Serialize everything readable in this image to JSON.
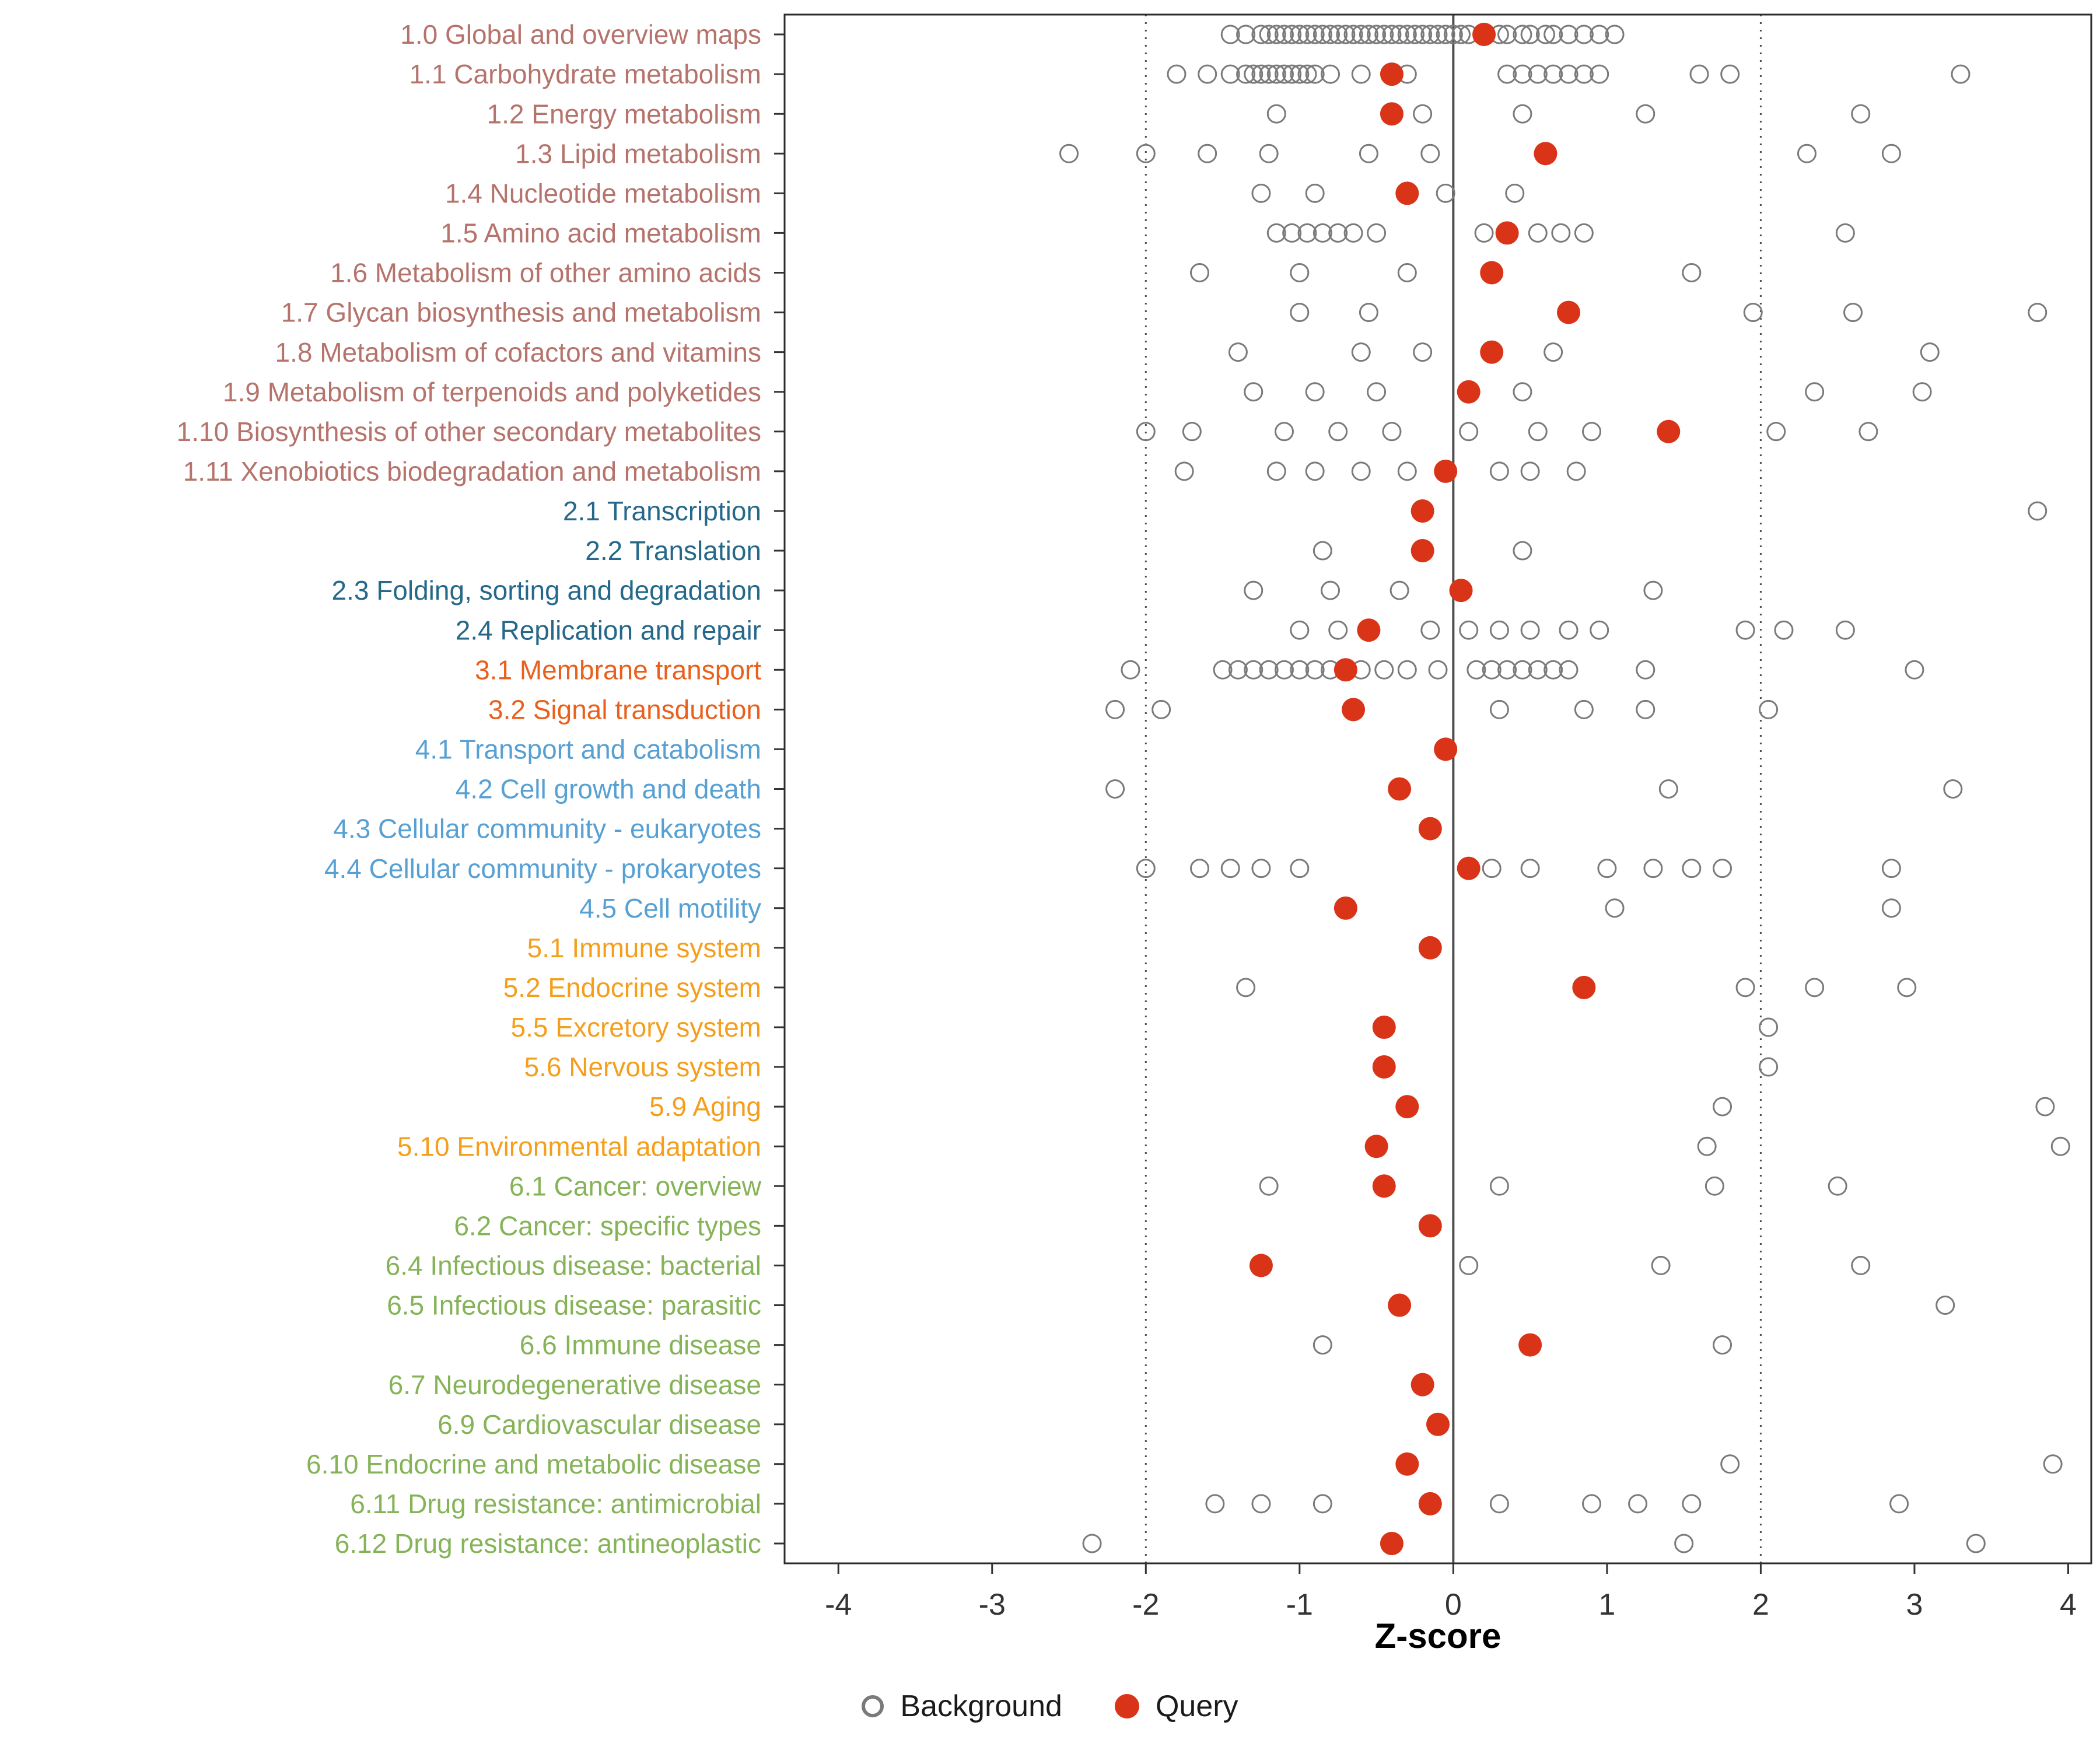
{
  "chart_data": {
    "type": "scatter",
    "xlabel": "Z-score",
    "x_ticks": [
      -4,
      -3,
      -2,
      -1,
      0,
      1,
      2,
      3,
      4
    ],
    "xlim": [
      -4.35,
      4.15
    ],
    "reference_lines": {
      "solid": [
        0
      ],
      "dotted": [
        -2,
        2
      ]
    },
    "legend": {
      "background_label": "Background",
      "query_label": "Query"
    },
    "colors": {
      "query_point": "#D93418",
      "background_point_stroke": "#7A7A7A",
      "axis_text": "#333333",
      "panel_border": "#2B2B2B",
      "reference_line": "#4D4D4D",
      "groups": {
        "metabolism": "#B5736C",
        "genetic_information_processing": "#25688A",
        "environmental_information_processing": "#E8601C",
        "cellular_processes": "#57A0D3",
        "organismal_systems": "#F59E1B",
        "human_diseases": "#85B357"
      }
    },
    "rows": [
      {
        "label": "1.0 Global and overview maps",
        "group": "metabolism",
        "query": 0.2,
        "background": [
          -1.45,
          -1.35,
          -1.25,
          -1.2,
          -1.15,
          -1.1,
          -1.05,
          -1.0,
          -0.95,
          -0.9,
          -0.85,
          -0.8,
          -0.75,
          -0.7,
          -0.65,
          -0.6,
          -0.55,
          -0.5,
          -0.45,
          -0.4,
          -0.35,
          -0.3,
          -0.25,
          -0.2,
          -0.15,
          -0.1,
          -0.05,
          0.0,
          0.05,
          0.1,
          0.3,
          0.35,
          0.45,
          0.5,
          0.6,
          0.65,
          0.75,
          0.85,
          0.95,
          1.05
        ]
      },
      {
        "label": "1.1 Carbohydrate metabolism",
        "group": "metabolism",
        "query": -0.4,
        "background": [
          -1.8,
          -1.6,
          -1.45,
          -1.35,
          -1.3,
          -1.25,
          -1.2,
          -1.15,
          -1.1,
          -1.05,
          -1.0,
          -0.95,
          -0.9,
          -0.8,
          -0.6,
          -0.3,
          0.35,
          0.45,
          0.55,
          0.65,
          0.75,
          0.85,
          0.95,
          1.6,
          1.8,
          3.3
        ]
      },
      {
        "label": "1.2 Energy metabolism",
        "group": "metabolism",
        "query": -0.4,
        "background": [
          -1.15,
          -0.2,
          0.45,
          1.25,
          2.65
        ]
      },
      {
        "label": "1.3 Lipid metabolism",
        "group": "metabolism",
        "query": 0.6,
        "background": [
          -2.5,
          -2.0,
          -1.6,
          -1.2,
          -0.55,
          -0.15,
          2.3,
          2.85
        ]
      },
      {
        "label": "1.4 Nucleotide metabolism",
        "group": "metabolism",
        "query": -0.3,
        "background": [
          -1.25,
          -0.9,
          -0.05,
          0.4
        ]
      },
      {
        "label": "1.5 Amino acid metabolism",
        "group": "metabolism",
        "query": 0.35,
        "background": [
          -1.15,
          -1.05,
          -0.95,
          -0.85,
          -0.75,
          -0.65,
          -0.5,
          0.2,
          0.55,
          0.7,
          0.85,
          2.55
        ]
      },
      {
        "label": "1.6 Metabolism of other amino acids",
        "group": "metabolism",
        "query": 0.25,
        "background": [
          -1.65,
          -1.0,
          -0.3,
          1.55
        ]
      },
      {
        "label": "1.7 Glycan biosynthesis and metabolism",
        "group": "metabolism",
        "query": 0.75,
        "background": [
          -1.0,
          -0.55,
          1.95,
          2.6,
          3.8
        ]
      },
      {
        "label": "1.8 Metabolism of cofactors and vitamins",
        "group": "metabolism",
        "query": 0.25,
        "background": [
          -1.4,
          -0.6,
          -0.2,
          0.65,
          3.1
        ]
      },
      {
        "label": "1.9 Metabolism of terpenoids and polyketides",
        "group": "metabolism",
        "query": 0.1,
        "background": [
          -1.3,
          -0.9,
          -0.5,
          0.45,
          2.35,
          3.05
        ]
      },
      {
        "label": "1.10 Biosynthesis of other secondary metabolites",
        "group": "metabolism",
        "query": 1.4,
        "background": [
          -2.0,
          -1.7,
          -1.1,
          -0.75,
          -0.4,
          0.1,
          0.55,
          0.9,
          2.1,
          2.7
        ]
      },
      {
        "label": "1.11 Xenobiotics biodegradation and metabolism",
        "group": "metabolism",
        "query": -0.05,
        "background": [
          -1.75,
          -1.15,
          -0.9,
          -0.6,
          -0.3,
          0.3,
          0.5,
          0.8
        ]
      },
      {
        "label": "2.1 Transcription",
        "group": "genetic_information_processing",
        "query": -0.2,
        "background": [
          3.8
        ]
      },
      {
        "label": "2.2 Translation",
        "group": "genetic_information_processing",
        "query": -0.2,
        "background": [
          -0.85,
          0.45
        ]
      },
      {
        "label": "2.3 Folding, sorting and degradation",
        "group": "genetic_information_processing",
        "query": 0.05,
        "background": [
          -1.3,
          -0.8,
          -0.35,
          1.3
        ]
      },
      {
        "label": "2.4 Replication and repair",
        "group": "genetic_information_processing",
        "query": -0.55,
        "background": [
          -1.0,
          -0.75,
          -0.15,
          0.1,
          0.3,
          0.5,
          0.75,
          0.95,
          1.9,
          2.15,
          2.55
        ]
      },
      {
        "label": "3.1 Membrane transport",
        "group": "environmental_information_processing",
        "query": -0.7,
        "background": [
          -2.1,
          -1.5,
          -1.4,
          -1.3,
          -1.2,
          -1.1,
          -1.0,
          -0.9,
          -0.8,
          -0.6,
          -0.45,
          -0.3,
          -0.1,
          0.15,
          0.25,
          0.35,
          0.45,
          0.55,
          0.65,
          0.75,
          1.25,
          3.0
        ]
      },
      {
        "label": "3.2 Signal transduction",
        "group": "environmental_information_processing",
        "query": -0.65,
        "background": [
          -2.2,
          -1.9,
          0.3,
          0.85,
          1.25,
          2.05
        ]
      },
      {
        "label": "4.1 Transport and catabolism",
        "group": "cellular_processes",
        "query": -0.05,
        "background": []
      },
      {
        "label": "4.2 Cell growth and death",
        "group": "cellular_processes",
        "query": -0.35,
        "background": [
          -2.2,
          1.4,
          3.25
        ]
      },
      {
        "label": "4.3 Cellular community - eukaryotes",
        "group": "cellular_processes",
        "query": -0.15,
        "background": []
      },
      {
        "label": "4.4 Cellular community - prokaryotes",
        "group": "cellular_processes",
        "query": 0.1,
        "background": [
          -2.0,
          -1.65,
          -1.45,
          -1.25,
          -1.0,
          0.25,
          0.5,
          1.0,
          1.3,
          1.55,
          1.75,
          2.85
        ]
      },
      {
        "label": "4.5 Cell motility",
        "group": "cellular_processes",
        "query": -0.7,
        "background": [
          1.05,
          2.85
        ]
      },
      {
        "label": "5.1 Immune system",
        "group": "organismal_systems",
        "query": -0.15,
        "background": []
      },
      {
        "label": "5.2 Endocrine system",
        "group": "organismal_systems",
        "query": 0.85,
        "background": [
          -1.35,
          1.9,
          2.35,
          2.95
        ]
      },
      {
        "label": "5.5 Excretory system",
        "group": "organismal_systems",
        "query": -0.45,
        "background": [
          2.05
        ]
      },
      {
        "label": "5.6 Nervous system",
        "group": "organismal_systems",
        "query": -0.45,
        "background": [
          2.05
        ]
      },
      {
        "label": "5.9 Aging",
        "group": "organismal_systems",
        "query": -0.3,
        "background": [
          1.75,
          3.85
        ]
      },
      {
        "label": "5.10 Environmental adaptation",
        "group": "organismal_systems",
        "query": -0.5,
        "background": [
          1.65,
          3.95
        ]
      },
      {
        "label": "6.1 Cancer: overview",
        "group": "human_diseases",
        "query": -0.45,
        "background": [
          -1.2,
          0.3,
          1.7,
          2.5
        ]
      },
      {
        "label": "6.2 Cancer: specific types",
        "group": "human_diseases",
        "query": -0.15,
        "background": []
      },
      {
        "label": "6.4 Infectious disease: bacterial",
        "group": "human_diseases",
        "query": -1.25,
        "background": [
          0.1,
          1.35,
          2.65
        ]
      },
      {
        "label": "6.5 Infectious disease: parasitic",
        "group": "human_diseases",
        "query": -0.35,
        "background": [
          3.2
        ]
      },
      {
        "label": "6.6 Immune disease",
        "group": "human_diseases",
        "query": 0.5,
        "background": [
          -0.85,
          1.75
        ]
      },
      {
        "label": "6.7 Neurodegenerative disease",
        "group": "human_diseases",
        "query": -0.2,
        "background": []
      },
      {
        "label": "6.9 Cardiovascular disease",
        "group": "human_diseases",
        "query": -0.1,
        "background": []
      },
      {
        "label": "6.10 Endocrine and metabolic disease",
        "group": "human_diseases",
        "query": -0.3,
        "background": [
          1.8,
          3.9
        ]
      },
      {
        "label": "6.11 Drug resistance: antimicrobial",
        "group": "human_diseases",
        "query": -0.15,
        "background": [
          -1.55,
          -1.25,
          -0.85,
          0.3,
          0.9,
          1.2,
          1.55,
          2.9
        ]
      },
      {
        "label": "6.12 Drug resistance: antineoplastic",
        "group": "human_diseases",
        "query": -0.4,
        "background": [
          -2.35,
          1.5,
          3.4
        ]
      }
    ]
  }
}
